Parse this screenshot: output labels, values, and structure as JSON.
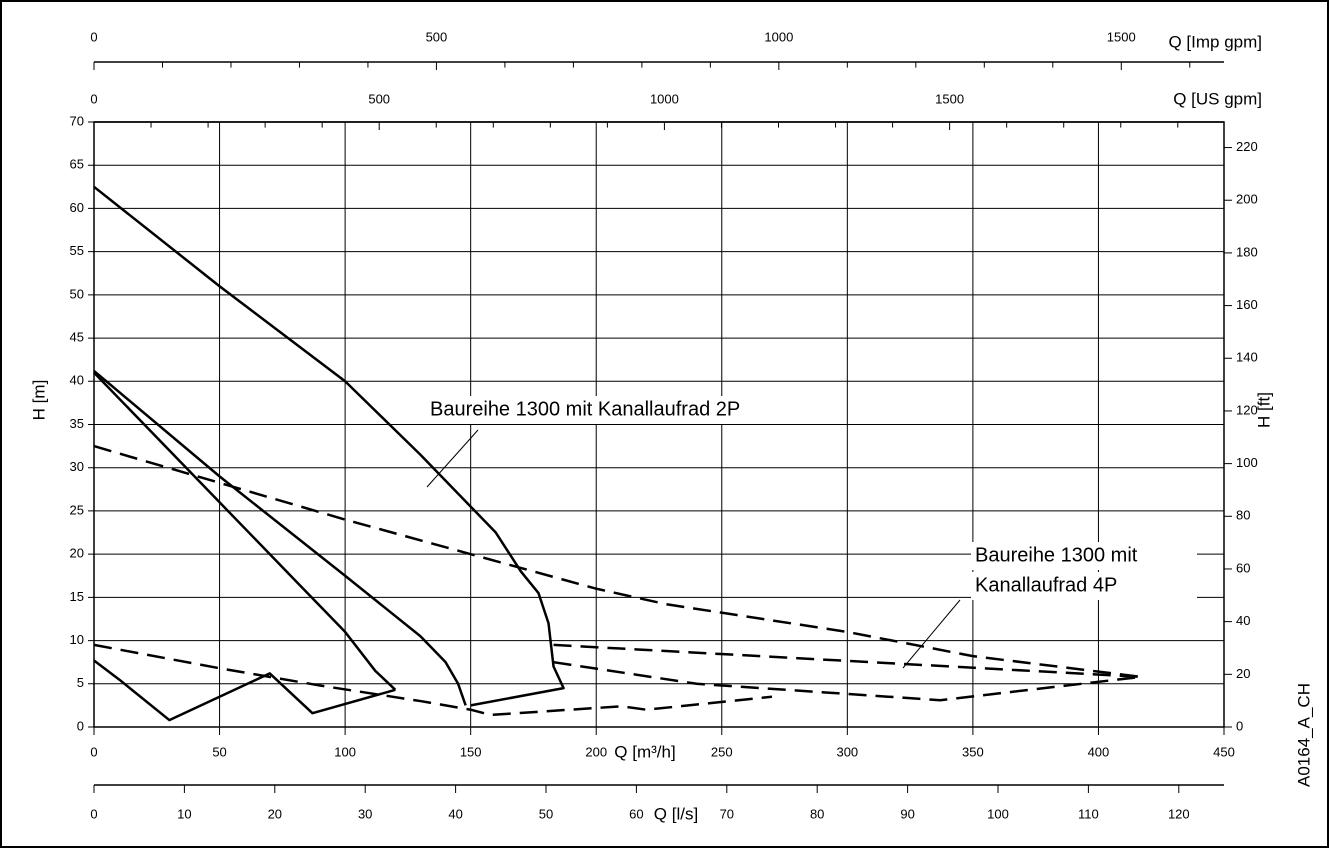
{
  "chart_data": {
    "type": "line",
    "x_label": "Q [m³/h]",
    "y_label": "H [m]",
    "y2_label": "H [ft]",
    "figure_code": "A0164_A_CH",
    "xlim": [
      0,
      450
    ],
    "xticks": [
      0,
      50,
      100,
      150,
      200,
      250,
      300,
      350,
      400,
      450
    ],
    "ylim": [
      0,
      70
    ],
    "yticks": [
      0,
      5,
      10,
      15,
      20,
      25,
      30,
      35,
      40,
      45,
      50,
      55,
      60,
      65,
      70
    ],
    "y2lim": [
      0,
      229.7
    ],
    "y2ticks": [
      0,
      20,
      40,
      60,
      80,
      100,
      120,
      140,
      160,
      180,
      200,
      220
    ],
    "grid": true,
    "top_axes": [
      {
        "label": "Q [Imp gpm]",
        "lim": [
          0,
          1650
        ],
        "ticks": [
          0,
          500,
          1000,
          1500
        ],
        "minor_ticks": [
          100,
          200,
          300,
          400,
          600,
          700,
          800,
          900,
          1100,
          1200,
          1300,
          1400,
          1600
        ]
      },
      {
        "label": "Q [US gpm]",
        "lim": [
          0,
          1981
        ],
        "ticks": [
          0,
          500,
          1000,
          1500
        ],
        "minor_ticks": [
          100,
          200,
          300,
          400,
          600,
          700,
          800,
          900,
          1100,
          1200,
          1300,
          1400,
          1600,
          1700,
          1800,
          1900
        ]
      }
    ],
    "bottom_axis": {
      "label": "Q [l/s]",
      "lim": [
        0,
        125
      ],
      "ticks": [
        0,
        10,
        20,
        30,
        40,
        50,
        60,
        70,
        80,
        90,
        100,
        110,
        120
      ]
    },
    "series": [
      {
        "color": "#000000",
        "dashed": false,
        "x": [
          0,
          50,
          100,
          130,
          150,
          160,
          170,
          177,
          181,
          183,
          187,
          150
        ],
        "values": [
          62.5,
          51,
          40,
          31.5,
          25.5,
          22.5,
          18,
          15.5,
          12,
          7,
          4.5,
          2.5
        ]
      },
      {
        "color": "#000000",
        "dashed": false,
        "x": [
          0,
          50,
          100,
          130,
          140,
          145,
          148
        ],
        "values": [
          41.2,
          29,
          17.5,
          10.5,
          7.5,
          5,
          2.5
        ]
      },
      {
        "color": "#000000",
        "dashed": false,
        "x": [
          0,
          50,
          80,
          100,
          112,
          120
        ],
        "values": [
          41,
          26,
          17,
          11,
          6.5,
          4.3
        ]
      },
      {
        "color": "#000000",
        "dashed": false,
        "x": [
          0,
          10,
          30,
          70,
          87,
          120
        ],
        "values": [
          7.7,
          5.5,
          0.8,
          6.2,
          1.6,
          4.3
        ]
      },
      {
        "color": "#000000",
        "dashed": true,
        "x": [
          0,
          100,
          150,
          200,
          228,
          300,
          350,
          417
        ],
        "values": [
          32.5,
          24,
          20,
          16,
          14.2,
          11,
          8.2,
          5.8
        ]
      },
      {
        "color": "#000000",
        "dashed": true,
        "x": [
          183,
          417
        ],
        "values": [
          9.5,
          5.8
        ]
      },
      {
        "color": "#000000",
        "dashed": true,
        "x": [
          183,
          240,
          337,
          417
        ],
        "values": [
          7.5,
          5,
          3.1,
          5.8
        ]
      },
      {
        "color": "#000000",
        "dashed": true,
        "x": [
          0,
          50,
          90,
          130,
          150,
          158,
          200,
          210,
          220,
          270
        ],
        "values": [
          9.5,
          6.8,
          4.8,
          3.0,
          2.0,
          1.4,
          2.2,
          2.4,
          2.0,
          3.5
        ]
      }
    ],
    "annotations": [
      {
        "lines": [
          "Baureihe 1300 mit Kanallaufrad 2P"
        ]
      },
      {
        "lines": [
          "Baureihe 1300 mit",
          "Kanallaufrad 4P"
        ]
      }
    ]
  }
}
